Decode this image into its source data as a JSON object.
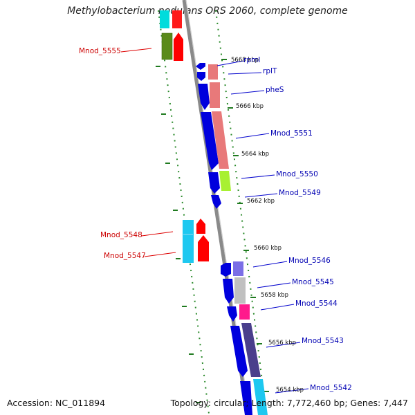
{
  "title": "Methylobacterium nodulans ORS 2060, complete genome",
  "accession": "Accession: NC_011894",
  "summary": "Topology: circular; Length: 7,772,460 bp; Genes: 7,447",
  "colors": {
    "backbone": "#8a8a8a",
    "tick_green": "#1f7a1f",
    "forward_blue": "#0000dd",
    "reverse_red": "#ff0000",
    "cyan": "#00bfff",
    "olive": "#5a8a1a",
    "label_blue": "#0000b3",
    "label_red": "#cc0000"
  },
  "scale_labels": [
    "5668 kbp",
    "5666 kbp",
    "5664 kbp",
    "5662 kbp",
    "5660 kbp",
    "5658 kbp",
    "5656 kbp",
    "5654 kbp"
  ],
  "genes_right": [
    "rpmI",
    "rplT",
    "pheS",
    "Mnod_5551",
    "Mnod_5550",
    "Mnod_5549",
    "Mnod_5546",
    "Mnod_5545",
    "Mnod_5544",
    "Mnod_5543",
    "Mnod_5542"
  ],
  "genes_left": [
    "Mnod_5555",
    "Mnod_5548",
    "Mnod_5547"
  ]
}
